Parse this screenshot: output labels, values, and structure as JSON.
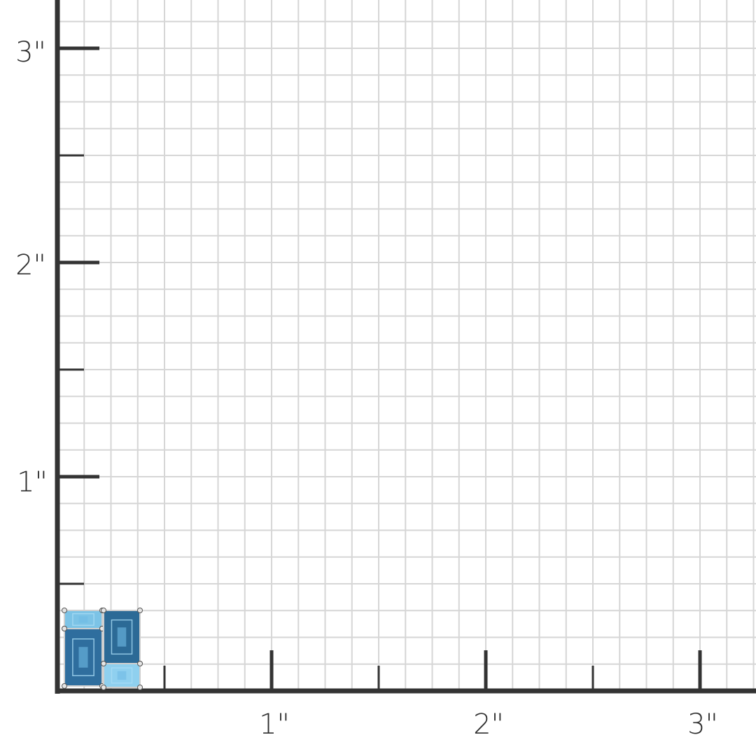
{
  "ruler": {
    "unit_label_suffix": "\"",
    "x_labels": [
      "1\"",
      "2\"",
      "3\""
    ],
    "y_labels": [
      "1\"",
      "2\"",
      "3\""
    ],
    "subdivisions_per_inch": 8,
    "colors": {
      "grid": "#d6d6d6",
      "axis": "#333333",
      "label": "#2f2f2f"
    }
  },
  "product": {
    "type": "earring",
    "stones": [
      {
        "name": "small-baguette-top-left",
        "color": "#7cc3e6"
      },
      {
        "name": "large-baguette-left",
        "color": "#2f6e9e"
      },
      {
        "name": "large-baguette-right",
        "color": "#2c6a96"
      },
      {
        "name": "small-baguette-bottom-right",
        "color": "#8fd0ef"
      }
    ],
    "metal_color": "#cfcfcf"
  }
}
